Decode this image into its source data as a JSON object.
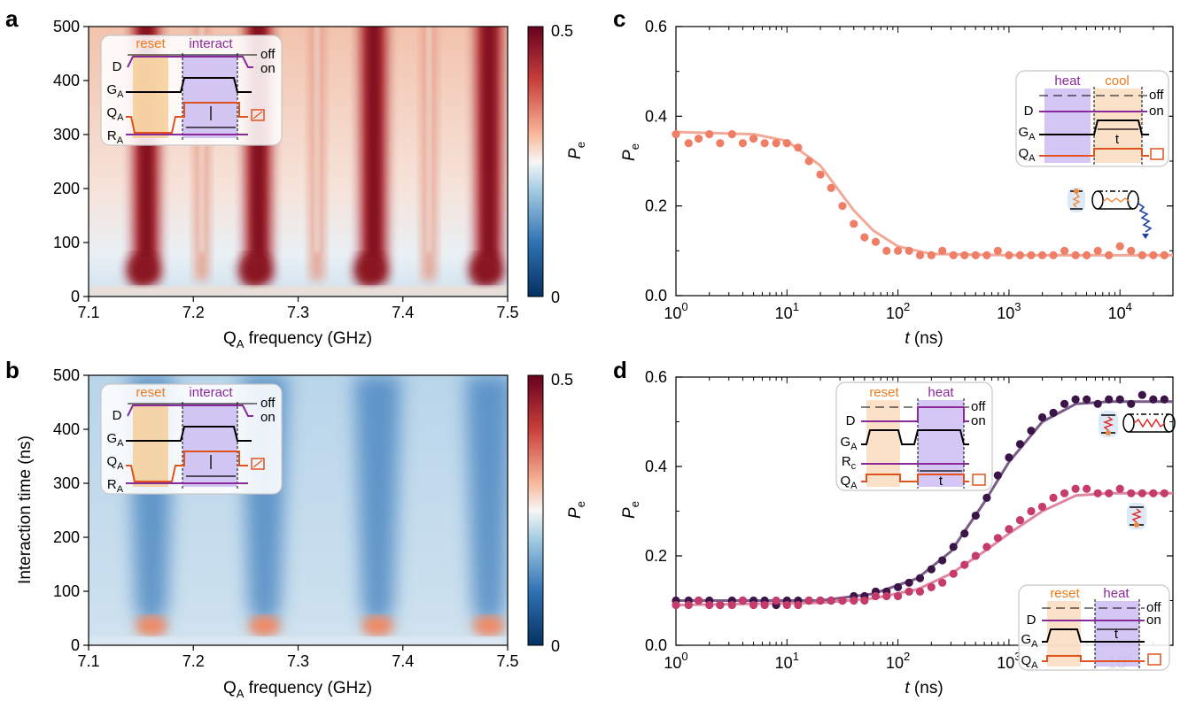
{
  "chart_data": [
    {
      "panel": "a",
      "type": "heatmap",
      "xlabel": "Q_A frequency (GHz)",
      "ylabel": "",
      "xlim": [
        7.1,
        7.5
      ],
      "ylim": [
        0,
        500
      ],
      "xticks": [
        "7.1",
        "7.2",
        "7.3",
        "7.4",
        "7.5"
      ],
      "yticks": [
        "0",
        "100",
        "200",
        "300",
        "400",
        "500"
      ],
      "colorbar": {
        "label": "P_e",
        "min": "0",
        "max": "0.5"
      },
      "features": [
        {
          "x": 7.155,
          "intensity": 0.92
        },
        {
          "x": 7.208,
          "intensity": 0.45
        },
        {
          "x": 7.262,
          "intensity": 0.92
        },
        {
          "x": 7.318,
          "intensity": 0.5
        },
        {
          "x": 7.372,
          "intensity": 0.95
        },
        {
          "x": 7.425,
          "intensity": 0.55
        },
        {
          "x": 7.482,
          "intensity": 0.95
        }
      ],
      "inset": {
        "labels": [
          "reset",
          "interact",
          "off",
          "on",
          "D",
          "G_A",
          "Q_A",
          "R_A"
        ]
      }
    },
    {
      "panel": "b",
      "type": "heatmap",
      "xlabel": "Q_A frequency (GHz)",
      "ylabel": "Interaction time (ns)",
      "xlim": [
        7.1,
        7.5
      ],
      "ylim": [
        0,
        500
      ],
      "xticks": [
        "7.1",
        "7.2",
        "7.3",
        "7.4",
        "7.5"
      ],
      "yticks": [
        "0",
        "100",
        "200",
        "300",
        "400",
        "500"
      ],
      "colorbar": {
        "label": "P_e",
        "min": "0",
        "max": "0.5"
      },
      "features": [
        {
          "x": 7.16,
          "intensity": 0.6
        },
        {
          "x": 7.268,
          "intensity": 0.6
        },
        {
          "x": 7.376,
          "intensity": 0.6
        },
        {
          "x": 7.482,
          "intensity": 0.6
        }
      ],
      "inset": {
        "labels": [
          "reset",
          "interact",
          "off",
          "on",
          "D",
          "G_A",
          "Q_A",
          "R_A"
        ]
      }
    },
    {
      "panel": "c",
      "type": "scatter",
      "xscale": "log",
      "xlabel": "t (ns)",
      "ylabel": "P_e",
      "xlim": [
        1,
        30000
      ],
      "ylim": [
        0,
        0.6
      ],
      "xticks": [
        "10^0",
        "10^1",
        "10^2",
        "10^3",
        "10^4"
      ],
      "yticks": [
        "0.0",
        "0.2",
        "0.4",
        "0.6"
      ],
      "series": [
        {
          "color": "#ef7e66",
          "x": [
            1,
            1.3,
            1.6,
            2,
            2.5,
            3.2,
            4,
            5,
            6.3,
            8,
            10,
            12.6,
            15.8,
            20,
            25,
            31.6,
            40,
            50,
            63,
            79,
            100,
            126,
            158,
            200,
            251,
            316,
            398,
            501,
            631,
            794,
            1000,
            1259,
            1585,
            1995,
            2512,
            3162,
            3981,
            5012,
            6310,
            7943,
            10000,
            12589,
            15849,
            19953,
            25119
          ],
          "y": [
            0.36,
            0.34,
            0.35,
            0.36,
            0.34,
            0.36,
            0.34,
            0.35,
            0.34,
            0.34,
            0.34,
            0.33,
            0.3,
            0.27,
            0.24,
            0.2,
            0.16,
            0.13,
            0.12,
            0.1,
            0.1,
            0.1,
            0.09,
            0.09,
            0.1,
            0.09,
            0.09,
            0.09,
            0.09,
            0.1,
            0.09,
            0.09,
            0.09,
            0.09,
            0.09,
            0.1,
            0.09,
            0.09,
            0.1,
            0.09,
            0.11,
            0.1,
            0.09,
            0.09,
            0.09
          ],
          "fit": [
            [
              1,
              0.365
            ],
            [
              5,
              0.36
            ],
            [
              10,
              0.345
            ],
            [
              20,
              0.29
            ],
            [
              40,
              0.19
            ],
            [
              60,
              0.145
            ],
            [
              100,
              0.11
            ],
            [
              200,
              0.093
            ],
            [
              1000,
              0.09
            ],
            [
              30000,
              0.09
            ]
          ]
        }
      ],
      "inset": {
        "labels": [
          "heat",
          "cool",
          "off",
          "on",
          "D",
          "G_A",
          "Q_A",
          "t"
        ]
      }
    },
    {
      "panel": "d",
      "type": "scatter",
      "xscale": "log",
      "xlabel": "t (ns)",
      "ylabel": "P_e",
      "xlim": [
        1,
        30000
      ],
      "ylim": [
        0,
        0.6
      ],
      "xticks": [
        "10^0",
        "10^1",
        "10^2",
        "10^3",
        "10^4"
      ],
      "yticks": [
        "0.0",
        "0.2",
        "0.4",
        "0.6"
      ],
      "series": [
        {
          "color": "#3b1548",
          "x": [
            1,
            1.3,
            1.6,
            2,
            2.5,
            3.2,
            4,
            5,
            6.3,
            8,
            10,
            12.6,
            15.8,
            20,
            25,
            31.6,
            40,
            50,
            63,
            79,
            100,
            126,
            158,
            200,
            251,
            316,
            398,
            501,
            631,
            794,
            1000,
            1259,
            1585,
            1995,
            2512,
            3162,
            3981,
            5012,
            6310,
            7943,
            10000,
            12589,
            15849,
            19953,
            25119
          ],
          "y": [
            0.1,
            0.1,
            0.1,
            0.1,
            0.09,
            0.1,
            0.1,
            0.1,
            0.1,
            0.09,
            0.1,
            0.1,
            0.1,
            0.1,
            0.1,
            0.1,
            0.11,
            0.11,
            0.12,
            0.12,
            0.13,
            0.14,
            0.15,
            0.17,
            0.19,
            0.22,
            0.25,
            0.29,
            0.33,
            0.38,
            0.42,
            0.45,
            0.48,
            0.51,
            0.52,
            0.54,
            0.55,
            0.55,
            0.54,
            0.55,
            0.55,
            0.54,
            0.56,
            0.55,
            0.55
          ],
          "fit": [
            [
              1,
              0.1
            ],
            [
              20,
              0.1
            ],
            [
              60,
              0.115
            ],
            [
              150,
              0.15
            ],
            [
              300,
              0.21
            ],
            [
              600,
              0.32
            ],
            [
              1000,
              0.41
            ],
            [
              2000,
              0.5
            ],
            [
              4000,
              0.54
            ],
            [
              8000,
              0.545
            ],
            [
              30000,
              0.545
            ]
          ]
        },
        {
          "color": "#c43b6c",
          "x": [
            1,
            1.3,
            1.6,
            2,
            2.5,
            3.2,
            4,
            5,
            6.3,
            8,
            10,
            12.6,
            15.8,
            20,
            25,
            31.6,
            40,
            50,
            63,
            79,
            100,
            126,
            158,
            200,
            251,
            316,
            398,
            501,
            631,
            794,
            1000,
            1259,
            1585,
            1995,
            2512,
            3162,
            3981,
            5012,
            6310,
            7943,
            10000,
            12589,
            15849,
            19953,
            25119
          ],
          "y": [
            0.09,
            0.09,
            0.1,
            0.09,
            0.09,
            0.09,
            0.1,
            0.09,
            0.09,
            0.1,
            0.09,
            0.09,
            0.1,
            0.1,
            0.1,
            0.1,
            0.1,
            0.1,
            0.11,
            0.11,
            0.11,
            0.12,
            0.12,
            0.13,
            0.14,
            0.16,
            0.18,
            0.2,
            0.22,
            0.24,
            0.26,
            0.28,
            0.3,
            0.31,
            0.33,
            0.34,
            0.35,
            0.35,
            0.34,
            0.34,
            0.35,
            0.34,
            0.34,
            0.34,
            0.34
          ],
          "fit": [
            [
              1,
              0.09
            ],
            [
              20,
              0.095
            ],
            [
              60,
              0.105
            ],
            [
              150,
              0.125
            ],
            [
              300,
              0.16
            ],
            [
              600,
              0.21
            ],
            [
              1000,
              0.25
            ],
            [
              2000,
              0.3
            ],
            [
              4000,
              0.335
            ],
            [
              8000,
              0.34
            ],
            [
              30000,
              0.34
            ]
          ]
        }
      ],
      "inset_top": {
        "labels": [
          "reset",
          "heat",
          "off",
          "on",
          "D",
          "G_A",
          "R_c",
          "Q_A",
          "t"
        ]
      },
      "inset_bottom": {
        "labels": [
          "reset",
          "heat",
          "off",
          "on",
          "D",
          "G_A",
          "Q_A",
          "t"
        ]
      }
    }
  ],
  "colors": {
    "red": "#8b1a1a",
    "blue": "#1f5a9c",
    "orange": "#ef8a3c",
    "purple": "#8a2a9a",
    "fit_c": "#f2a08c",
    "fit_d_dark": "#6a4a7a",
    "fit_d_light": "#d97a96"
  }
}
